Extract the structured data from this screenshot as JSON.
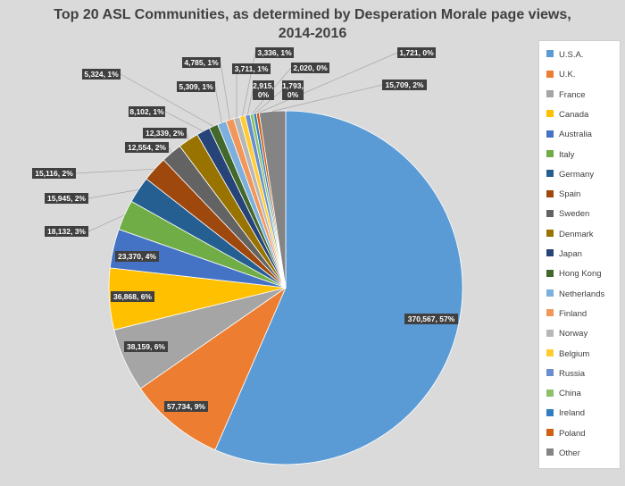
{
  "chart_data": {
    "type": "pie",
    "title": "Top 20 ASL Communities, as determined by Desperation Morale page views, 2014-2016",
    "legend_position": "right",
    "slices": [
      {
        "name": "U.S.A.",
        "value": 370567,
        "label": "370,567, 57%",
        "color": "#5b9bd5"
      },
      {
        "name": "U.K.",
        "value": 57734,
        "label": "57,734, 9%",
        "color": "#ed7d31"
      },
      {
        "name": "France",
        "value": 38159,
        "label": "38,159, 6%",
        "color": "#a5a5a5"
      },
      {
        "name": "Canada",
        "value": 36868,
        "label": "36,868, 6%",
        "color": "#ffc000"
      },
      {
        "name": "Australia",
        "value": 23370,
        "label": "23,370, 4%",
        "color": "#4472c4"
      },
      {
        "name": "Italy",
        "value": 18132,
        "label": "18,132, 3%",
        "color": "#70ad47"
      },
      {
        "name": "Germany",
        "value": 15945,
        "label": "15,945, 2%",
        "color": "#255e91"
      },
      {
        "name": "Spain",
        "value": 15116,
        "label": "15,116, 2%",
        "color": "#9e480e"
      },
      {
        "name": "Sweden",
        "value": 12554,
        "label": "12,554, 2%",
        "color": "#636363"
      },
      {
        "name": "Denmark",
        "value": 12339,
        "label": "12,339, 2%",
        "color": "#997300"
      },
      {
        "name": "Japan",
        "value": 8102,
        "label": "8,102, 1%",
        "color": "#264478"
      },
      {
        "name": "Hong Kong",
        "value": 5324,
        "label": "5,324, 1%",
        "color": "#43682b"
      },
      {
        "name": "Netherlands",
        "value": 5309,
        "label": "5,309, 1%",
        "color": "#7cafdd"
      },
      {
        "name": "Finland",
        "value": 4785,
        "label": "4,785, 1%",
        "color": "#f1975a"
      },
      {
        "name": "Norway",
        "value": 3711,
        "label": "3,711, 1%",
        "color": "#b7b7b7"
      },
      {
        "name": "Belgium",
        "value": 3336,
        "label": "3,336, 1%",
        "color": "#ffcd33"
      },
      {
        "name": "Russia",
        "value": 2915,
        "label": "2,915, 0%",
        "color": "#698ed0"
      },
      {
        "name": "China",
        "value": 2020,
        "label": "2,020, 0%",
        "color": "#8cc168"
      },
      {
        "name": "Ireland",
        "value": 1793,
        "label": "1,793, 0%",
        "color": "#327dc2"
      },
      {
        "name": "Poland",
        "value": 1721,
        "label": "1,721, 0%",
        "color": "#d26012"
      },
      {
        "name": "Other",
        "value": 15709,
        "label": "15,709, 2%",
        "color": "#848484"
      }
    ]
  }
}
